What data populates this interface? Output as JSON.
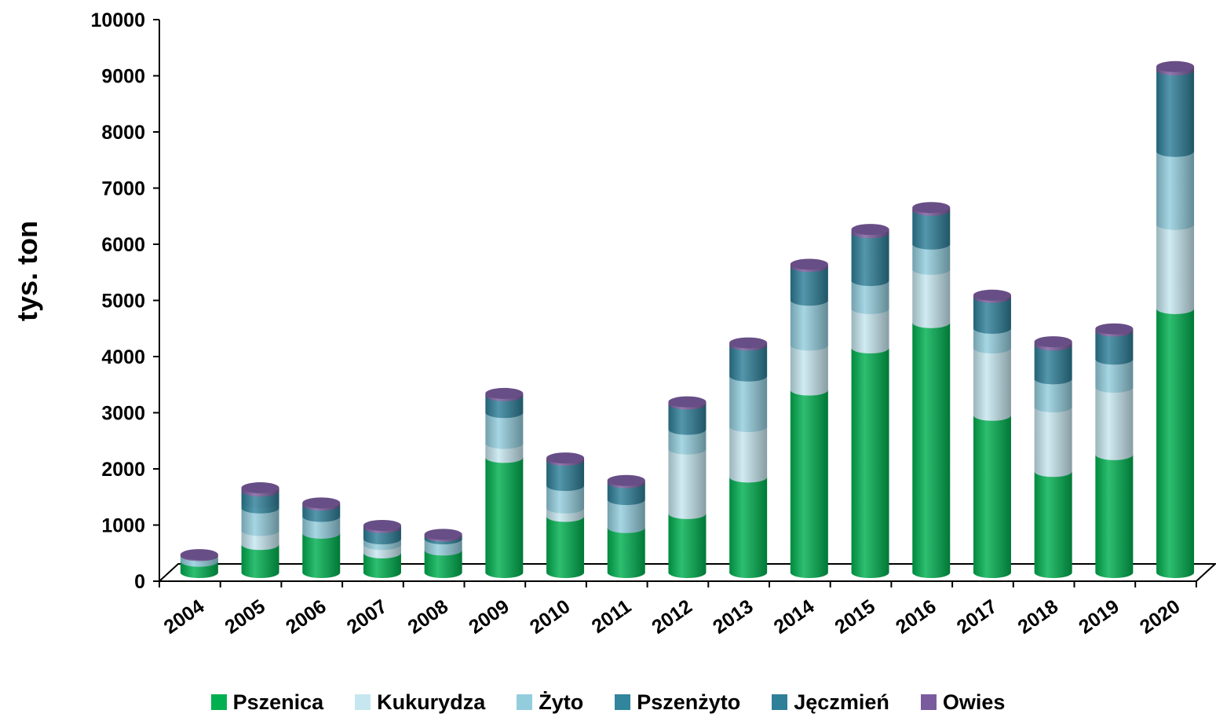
{
  "chart_data": {
    "type": "bar",
    "stacked": true,
    "style": "3d-cylinder",
    "title": "",
    "xlabel": "",
    "ylabel": "tys. ton",
    "ylim": [
      0,
      10000
    ],
    "yticks": [
      0,
      1000,
      2000,
      3000,
      4000,
      5000,
      6000,
      7000,
      8000,
      9000,
      10000
    ],
    "grid": false,
    "legend_position": "bottom",
    "categories": [
      "2004",
      "2005",
      "2006",
      "2007",
      "2008",
      "2009",
      "2010",
      "2011",
      "2012",
      "2013",
      "2014",
      "2015",
      "2016",
      "2017",
      "2018",
      "2019",
      "2020"
    ],
    "series": [
      {
        "name": "Pszenica",
        "color": "#00b050",
        "values": [
          200,
          500,
          700,
          350,
          400,
          2050,
          1000,
          800,
          1050,
          1700,
          3250,
          4000,
          4450,
          2800,
          1800,
          2100,
          4700
        ]
      },
      {
        "name": "Kukurydza",
        "color": "#c6e7ef",
        "values": [
          0,
          250,
          0,
          150,
          0,
          250,
          150,
          0,
          1150,
          900,
          800,
          700,
          950,
          1200,
          1150,
          1200,
          1500
        ]
      },
      {
        "name": "Żyto",
        "color": "#93cddd",
        "values": [
          100,
          400,
          300,
          100,
          200,
          550,
          400,
          500,
          350,
          900,
          800,
          500,
          450,
          350,
          500,
          500,
          1300
        ]
      },
      {
        "name": "Pszenżyto",
        "color": "#31859c",
        "values": [
          0,
          100,
          0,
          0,
          0,
          0,
          0,
          0,
          0,
          0,
          0,
          0,
          0,
          0,
          0,
          0,
          0
        ]
      },
      {
        "name": "Jęczmień",
        "color": "#2e7f98",
        "values": [
          0,
          200,
          200,
          200,
          50,
          300,
          450,
          300,
          450,
          550,
          600,
          850,
          600,
          550,
          600,
          500,
          1450
        ]
      },
      {
        "name": "Owies",
        "color": "#7a5c9e",
        "values": [
          20,
          60,
          40,
          40,
          30,
          40,
          40,
          40,
          40,
          40,
          40,
          60,
          50,
          40,
          60,
          40,
          60
        ]
      }
    ]
  }
}
